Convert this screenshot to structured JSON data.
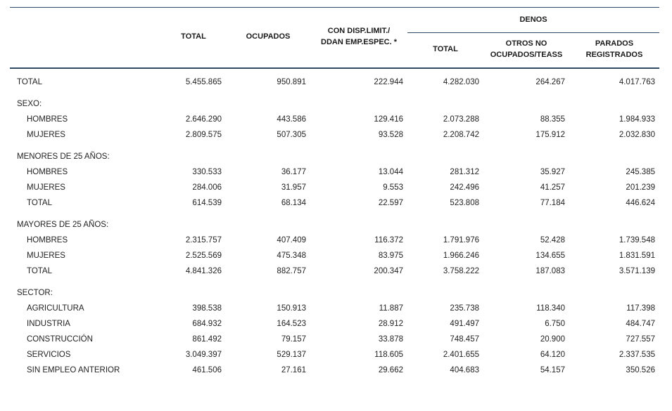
{
  "page": {
    "background_color": "#ffffff",
    "line_color": "#2e4a66",
    "text_color": "#222222"
  },
  "table": {
    "header": {
      "col_total": "TOTAL",
      "col_ocupados": "OCUPADOS",
      "col_disp_line1": "CON DISP.LIMIT./",
      "col_disp_line2": "DDAN EMP.ESPEC. *",
      "denos_group": "DENOS",
      "denos_total": "TOTAL",
      "otros_line1": "OTROS NO",
      "otros_line2": "OCUPADOS/TEASS",
      "parados_line1": "PARADOS",
      "parados_line2": "REGISTRADOS"
    },
    "rows": [
      {
        "type": "data",
        "label": "TOTAL",
        "indent": false,
        "values": [
          "5.455.865",
          "950.891",
          "222.944",
          "4.282.030",
          "264.267",
          "4.017.763"
        ]
      },
      {
        "type": "section",
        "label": "SEXO:",
        "values": []
      },
      {
        "type": "data",
        "label": "HOMBRES",
        "indent": true,
        "values": [
          "2.646.290",
          "443.586",
          "129.416",
          "2.073.288",
          "88.355",
          "1.984.933"
        ]
      },
      {
        "type": "data",
        "label": "MUJERES",
        "indent": true,
        "values": [
          "2.809.575",
          "507.305",
          "93.528",
          "2.208.742",
          "175.912",
          "2.032.830"
        ]
      },
      {
        "type": "section",
        "label": "MENORES DE 25 AÑOS:",
        "values": []
      },
      {
        "type": "data",
        "label": "HOMBRES",
        "indent": true,
        "values": [
          "330.533",
          "36.177",
          "13.044",
          "281.312",
          "35.927",
          "245.385"
        ]
      },
      {
        "type": "data",
        "label": "MUJERES",
        "indent": true,
        "values": [
          "284.006",
          "31.957",
          "9.553",
          "242.496",
          "41.257",
          "201.239"
        ]
      },
      {
        "type": "data",
        "label": "TOTAL",
        "indent": true,
        "values": [
          "614.539",
          "68.134",
          "22.597",
          "523.808",
          "77.184",
          "446.624"
        ]
      },
      {
        "type": "section",
        "label": "MAYORES DE 25 AÑOS:",
        "values": []
      },
      {
        "type": "data",
        "label": "HOMBRES",
        "indent": true,
        "values": [
          "2.315.757",
          "407.409",
          "116.372",
          "1.791.976",
          "52.428",
          "1.739.548"
        ]
      },
      {
        "type": "data",
        "label": "MUJERES",
        "indent": true,
        "values": [
          "2.525.569",
          "475.348",
          "83.975",
          "1.966.246",
          "134.655",
          "1.831.591"
        ]
      },
      {
        "type": "data",
        "label": "TOTAL",
        "indent": true,
        "values": [
          "4.841.326",
          "882.757",
          "200.347",
          "3.758.222",
          "187.083",
          "3.571.139"
        ]
      },
      {
        "type": "section",
        "label": "SECTOR:",
        "values": []
      },
      {
        "type": "data",
        "label": "AGRICULTURA",
        "indent": true,
        "values": [
          "398.538",
          "150.913",
          "11.887",
          "235.738",
          "118.340",
          "117.398"
        ]
      },
      {
        "type": "data",
        "label": "INDUSTRIA",
        "indent": true,
        "values": [
          "684.932",
          "164.523",
          "28.912",
          "491.497",
          "6.750",
          "484.747"
        ]
      },
      {
        "type": "data",
        "label": "CONSTRUCCIÓN",
        "indent": true,
        "values": [
          "861.492",
          "79.157",
          "33.878",
          "748.457",
          "20.900",
          "727.557"
        ]
      },
      {
        "type": "data",
        "label": "SERVICIOS",
        "indent": true,
        "values": [
          "3.049.397",
          "529.137",
          "118.605",
          "2.401.655",
          "64.120",
          "2.337.535"
        ]
      },
      {
        "type": "data",
        "label": "SIN EMPLEO ANTERIOR",
        "indent": true,
        "values": [
          "461.506",
          "27.161",
          "29.662",
          "404.683",
          "54.157",
          "350.526"
        ]
      }
    ]
  }
}
